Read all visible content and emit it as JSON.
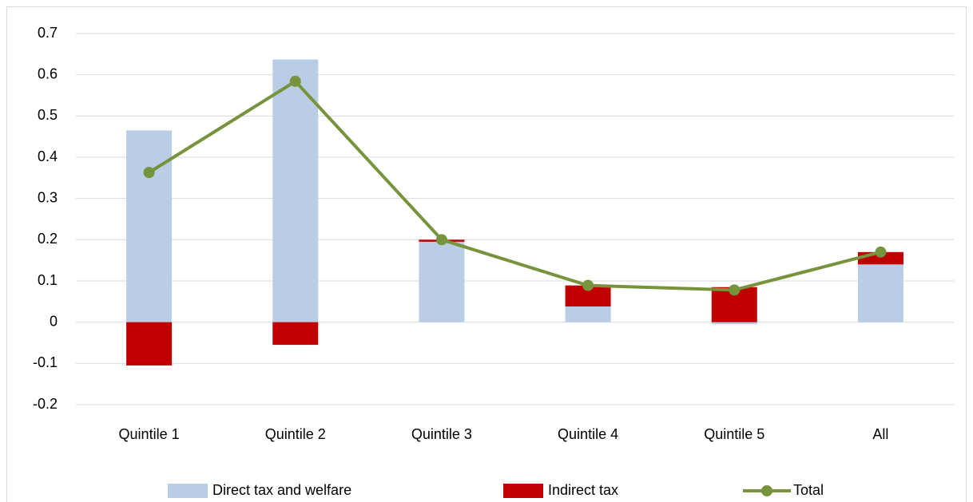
{
  "chart_data": {
    "type": "bar",
    "stacked": true,
    "categories": [
      "Quintile 1",
      "Quintile 2",
      "Quintile 3",
      "Quintile 4",
      "Quintile 5",
      "All"
    ],
    "series": [
      {
        "name": "Direct tax and welfare",
        "color": "#b9cde5",
        "values": [
          0.465,
          0.637,
          0.195,
          0.038,
          -0.005,
          0.14
        ]
      },
      {
        "name": "Indirect tax",
        "color": "#c00000",
        "values": [
          -0.105,
          -0.055,
          0.005,
          0.051,
          0.085,
          0.03
        ]
      },
      {
        "name": "Total",
        "type": "line",
        "color": "#77933c",
        "values": [
          0.363,
          0.584,
          0.2,
          0.089,
          0.078,
          0.17
        ]
      }
    ],
    "ylim": [
      -0.2,
      0.7
    ],
    "yticks": [
      -0.2,
      -0.1,
      0,
      0.1,
      0.2,
      0.3,
      0.4,
      0.5,
      0.6,
      0.7
    ],
    "grid": true,
    "legend": "bottom"
  }
}
